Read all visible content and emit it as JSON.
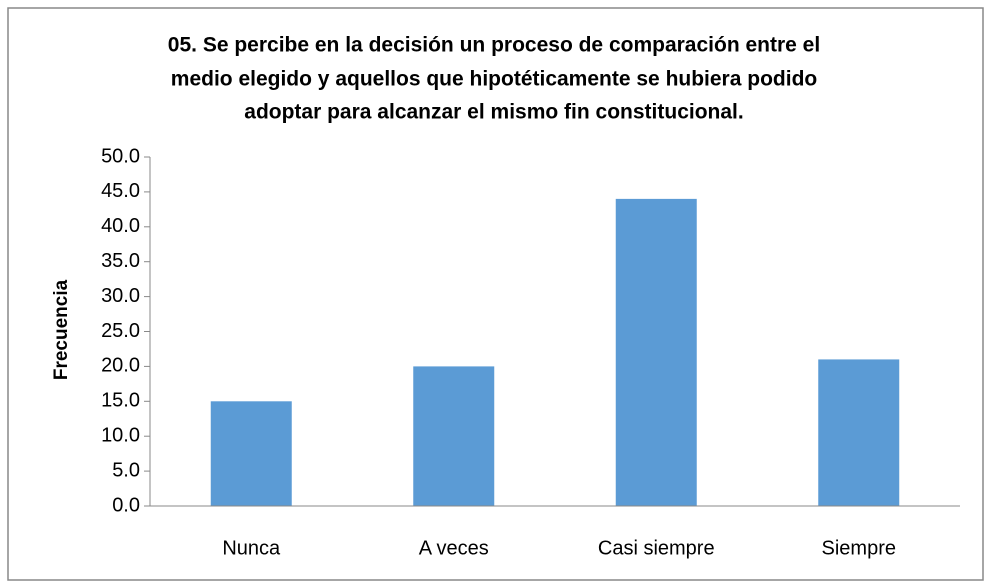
{
  "chart_data": {
    "type": "bar",
    "title": [
      "05. Se percibe en la decisión un proceso de comparación entre el",
      "medio elegido y aquellos que hipotéticamente se hubiera podido",
      "adoptar para alcanzar el mismo fin constitucional."
    ],
    "y_label": "Frecuencia",
    "categories": [
      "Nunca",
      "A veces",
      "Casi siempre",
      "Siempre"
    ],
    "values": [
      15,
      20,
      44,
      21
    ],
    "color": "#5b9bd5",
    "ylim": [
      0,
      50
    ],
    "yticks": [
      {
        "value": 0,
        "label": "0.0"
      },
      {
        "value": 5,
        "label": "5.0"
      },
      {
        "value": 10,
        "label": "10.0"
      },
      {
        "value": 15,
        "label": "15.0"
      },
      {
        "value": 20,
        "label": "20.0"
      },
      {
        "value": 25,
        "label": "25.0"
      },
      {
        "value": 30,
        "label": "30.0"
      },
      {
        "value": 35,
        "label": "35.0"
      },
      {
        "value": 40,
        "label": "40.0"
      },
      {
        "value": 45,
        "label": "45.0"
      },
      {
        "value": 50,
        "label": "50.0"
      }
    ],
    "grid": false
  }
}
